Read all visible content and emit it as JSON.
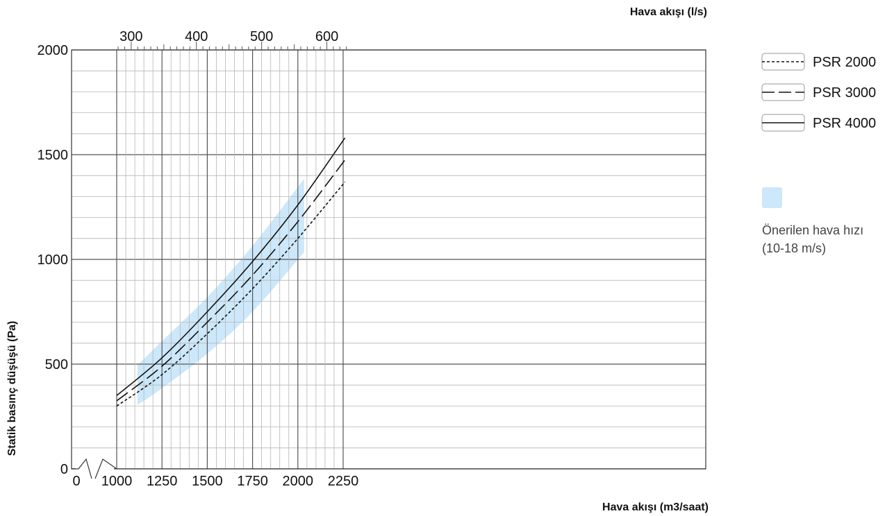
{
  "chart_data": {
    "type": "line",
    "xlabel": "Hava akışı (m3/saat)",
    "x2label": "Hava akışı  (l/s)",
    "ylabel": "Statik basınç düşüşü (Pa)",
    "xlim": [
      1000,
      2300
    ],
    "ylim": [
      0,
      2000
    ],
    "x_ticks": [
      1000,
      1250,
      1500,
      1750,
      2000,
      2250
    ],
    "x_origin_label": "0",
    "x2_ticks": [
      300,
      400,
      500,
      600
    ],
    "y_ticks": [
      0,
      500,
      1000,
      1500,
      2000
    ],
    "grid": true,
    "axis_break": true,
    "legend_position": "right",
    "series": [
      {
        "name": "PSR 2000",
        "style": "dotted",
        "x": [
          1000,
          1250,
          1500,
          1750,
          2000,
          2260
        ],
        "y": [
          300,
          450,
          645,
          860,
          1100,
          1370
        ]
      },
      {
        "name": "PSR 3000",
        "style": "dashed",
        "x": [
          1000,
          1250,
          1500,
          1750,
          2000,
          2260
        ],
        "y": [
          325,
          490,
          700,
          925,
          1180,
          1475
        ]
      },
      {
        "name": "PSR 4000",
        "style": "solid",
        "x": [
          1000,
          1250,
          1500,
          1750,
          2000,
          2260
        ],
        "y": [
          350,
          530,
          750,
          990,
          1260,
          1580
        ]
      }
    ],
    "band": {
      "name": "Önerilen hava hızı",
      "note": "(10-18 m/s)",
      "color": "#cce8fa",
      "x": [
        1115,
        1250,
        1500,
        1750,
        2035
      ],
      "upper": [
        495,
        610,
        820,
        1065,
        1385
      ],
      "lower": [
        305,
        385,
        550,
        750,
        1035
      ]
    }
  }
}
